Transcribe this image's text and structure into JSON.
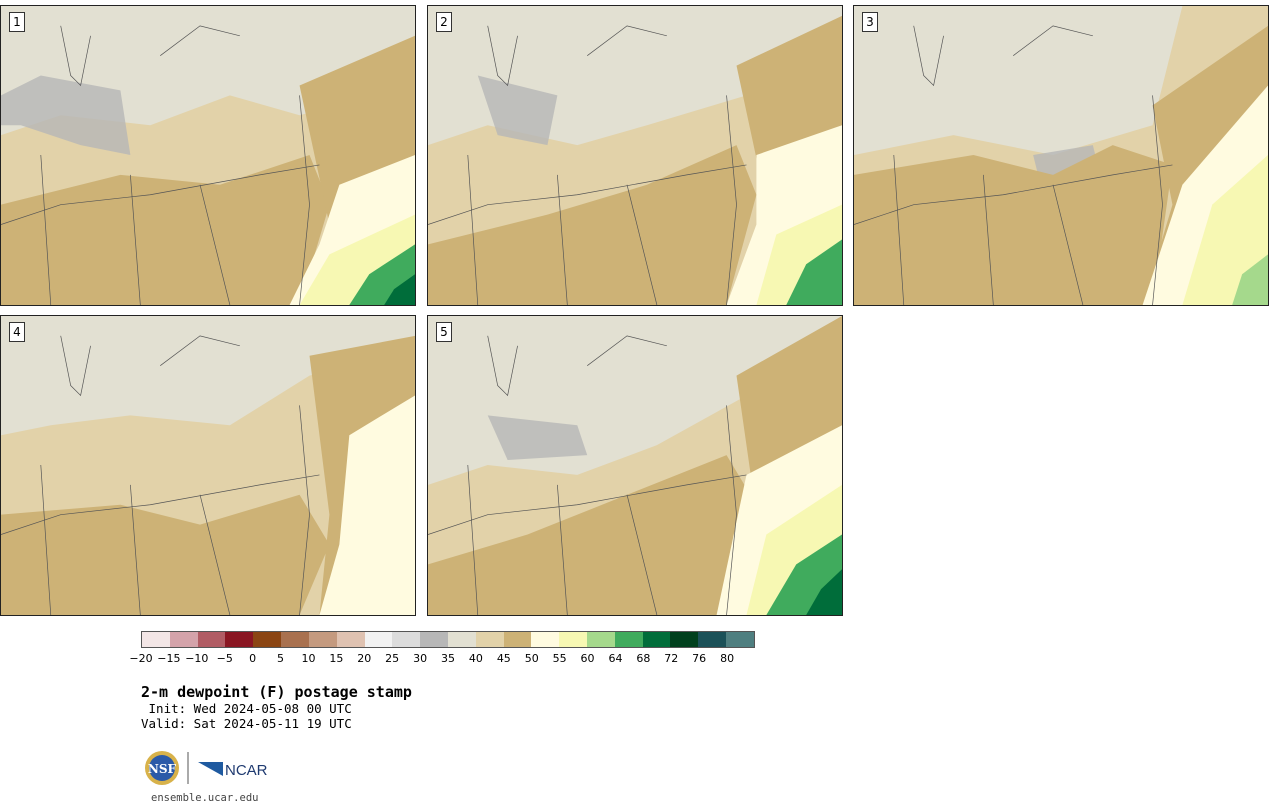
{
  "panels": [
    {
      "label": "1"
    },
    {
      "label": "2"
    },
    {
      "label": "3"
    },
    {
      "label": "4"
    },
    {
      "label": "5"
    }
  ],
  "colorbar": {
    "colors": [
      "#f3e6e6",
      "#d4a3aa",
      "#b15c64",
      "#8a1622",
      "#8b4513",
      "#a9714f",
      "#c49a7f",
      "#dfc2b1",
      "#f2f2f2",
      "#dcdcdc",
      "#b7b7b7",
      "#e2e0d2",
      "#e2d2a9",
      "#cdb276",
      "#fffbe0",
      "#f7f8b3",
      "#a5d98c",
      "#40ab5d",
      "#006d3a",
      "#00401d",
      "#1b5158",
      "#4f7f80"
    ],
    "ticks": [
      "−20",
      "−15",
      "−10",
      "−5",
      "0",
      "5",
      "10",
      "15",
      "20",
      "25",
      "30",
      "35",
      "40",
      "45",
      "50",
      "55",
      "60",
      "64",
      "68",
      "72",
      "76",
      "80"
    ]
  },
  "title": "2-m dewpoint (F) postage stamp",
  "init": " Init: Wed 2024-05-08 00 UTC",
  "valid": "Valid: Sat 2024-05-11 19 UTC",
  "logos": {
    "nsf": "NSF",
    "ncar": "NCAR"
  },
  "site": "ensemble.ucar.edu"
}
